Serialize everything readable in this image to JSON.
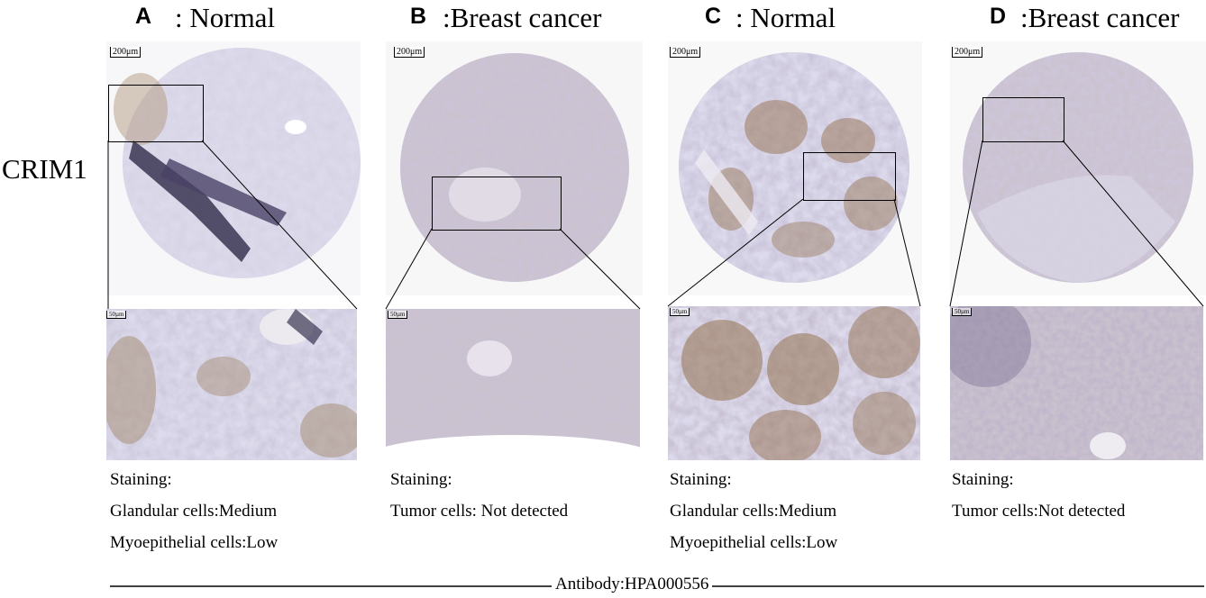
{
  "row_label": "CRIM1",
  "panels": [
    {
      "letter": "A",
      "title": ": Normal",
      "scale_top": "200μm",
      "scale_bottom": "50µm",
      "caption": [
        "Staining:",
        "Glandular cells:Medium",
        "Myoepithelial cells:Low"
      ]
    },
    {
      "letter": "B",
      "title": ":Breast cancer",
      "scale_top": "200μm",
      "scale_bottom": "50µm",
      "caption": [
        "Staining:",
        "Tumor cells: Not detected"
      ]
    },
    {
      "letter": "C",
      "title": ": Normal",
      "scale_top": "200μm",
      "scale_bottom": "50µm",
      "caption": [
        "Staining:",
        "Glandular cells:Medium",
        "Myoepithelial cells:Low"
      ]
    },
    {
      "letter": "D",
      "title": ":Breast cancer",
      "scale_top": "200μm",
      "scale_bottom": "50µm",
      "caption": [
        "Staining:",
        "Tumor cells:Not detected"
      ]
    }
  ],
  "antibody": "Antibody:HPA000556",
  "colors": {
    "tissue_purple": "#c7c2dc",
    "tissue_dark": "#3c3556",
    "stain_brown": "#9a7a5c",
    "background": "#ffffff"
  }
}
